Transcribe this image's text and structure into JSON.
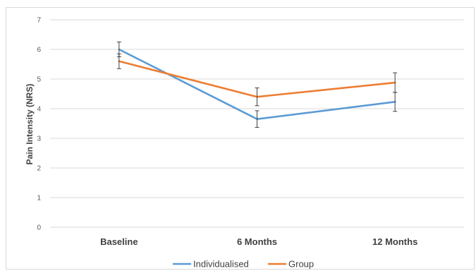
{
  "chart_data": {
    "type": "line",
    "categories": [
      "Baseline",
      "6 Months",
      "12 Months"
    ],
    "ylabel": "Pain Intensity (NRS)",
    "xlabel": "",
    "ylim": [
      0,
      7
    ],
    "yticks": [
      0,
      1,
      2,
      3,
      4,
      5,
      6,
      7
    ],
    "grid": true,
    "legend_position": "bottom",
    "series": [
      {
        "name": "Individualised",
        "color": "#5b9bd5",
        "values": [
          6.0,
          3.65,
          4.23
        ],
        "error": [
          0.25,
          0.28,
          0.32
        ]
      },
      {
        "name": "Group",
        "color": "#ed7d31",
        "values": [
          5.6,
          4.4,
          4.88
        ],
        "error": [
          0.25,
          0.3,
          0.33
        ]
      }
    ]
  }
}
